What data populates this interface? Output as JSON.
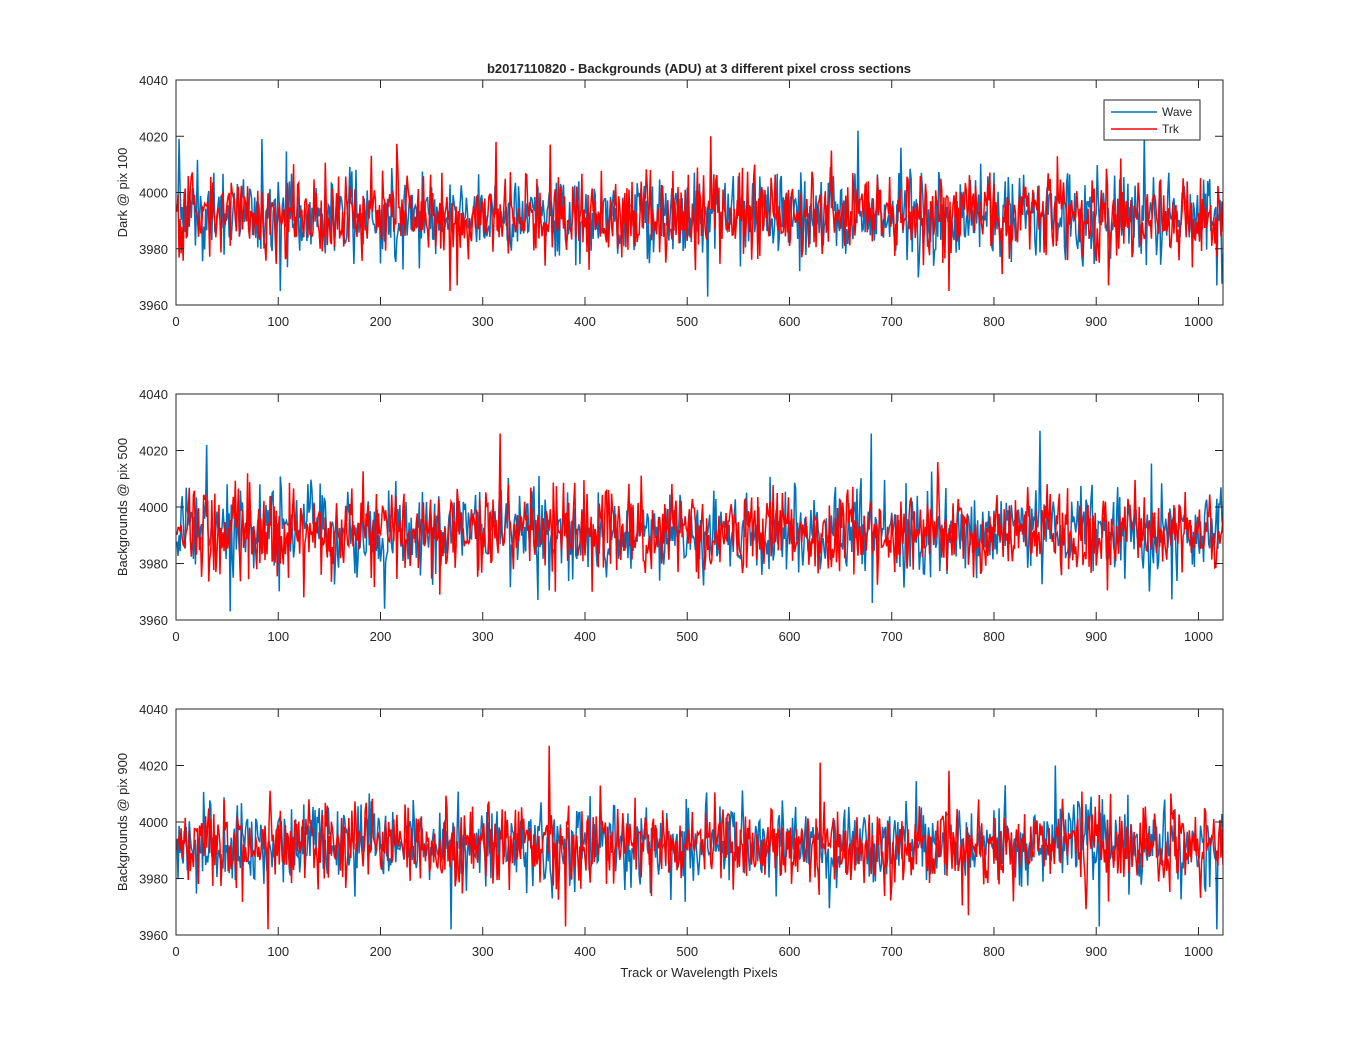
{
  "figure": {
    "title": "b2017110820 - Backgrounds (ADU) at 3 different pixel cross sections",
    "xlabel": "Track or Wavelength Pixels"
  },
  "legend": {
    "entries": [
      {
        "name": "Wave",
        "color": "#0072BD"
      },
      {
        "name": "Trk",
        "color": "#FF0000"
      }
    ],
    "location": "top-right of first panel"
  },
  "chart_data": [
    {
      "type": "line",
      "ylabel": "Dark @ pix 100",
      "xlim": [
        0,
        1024
      ],
      "ylim": [
        3960,
        4040
      ],
      "xticks": [
        0,
        100,
        200,
        300,
        400,
        500,
        600,
        700,
        800,
        900,
        1000
      ],
      "yticks": [
        3960,
        3980,
        4000,
        4020,
        4040
      ],
      "grid": false,
      "series": [
        {
          "name": "Wave",
          "color": "#0072BD",
          "x_range": [
            1,
            1024
          ],
          "mean": 3992,
          "std": 7.5,
          "min": 3963,
          "max": 4022,
          "notable": [
            [
              3,
              4019
            ],
            [
              84,
              4019
            ],
            [
              102,
              3965
            ],
            [
              520,
              3963
            ],
            [
              667,
              4022
            ],
            [
              947,
              4020
            ],
            [
              1018,
              3967
            ]
          ]
        },
        {
          "name": "Trk",
          "color": "#FF0000",
          "x_range": [
            1,
            1024
          ],
          "mean": 3992,
          "std": 7.5,
          "min": 3965,
          "max": 4020,
          "notable": [
            [
              268,
              3965
            ],
            [
              366,
              4017
            ],
            [
              523,
              4020
            ],
            [
              756,
              3965
            ],
            [
              808,
              3971
            ]
          ]
        }
      ]
    },
    {
      "type": "line",
      "ylabel": "Backgrounds @ pix 500",
      "xlim": [
        0,
        1024
      ],
      "ylim": [
        3960,
        4040
      ],
      "xticks": [
        0,
        100,
        200,
        300,
        400,
        500,
        600,
        700,
        800,
        900,
        1000
      ],
      "yticks": [
        3960,
        3980,
        4000,
        4020,
        4040
      ],
      "grid": false,
      "series": [
        {
          "name": "Wave",
          "color": "#0072BD",
          "x_range": [
            1,
            1024
          ],
          "mean": 3991,
          "std": 7.5,
          "min": 3963,
          "max": 4027,
          "notable": [
            [
              30,
              4022
            ],
            [
              53,
              3963
            ],
            [
              204,
              3964
            ],
            [
              845,
              4027
            ],
            [
              680,
              4026
            ],
            [
              681,
              3966
            ]
          ]
        },
        {
          "name": "Trk",
          "color": "#FF0000",
          "x_range": [
            1,
            1024
          ],
          "mean": 3991,
          "std": 7.5,
          "min": 3968,
          "max": 4026,
          "notable": [
            [
              317,
              4026
            ],
            [
              125,
              3968
            ],
            [
              258,
              3969
            ]
          ]
        }
      ]
    },
    {
      "type": "line",
      "ylabel": "Backgrounds @ pix 900",
      "xlim": [
        0,
        1024
      ],
      "ylim": [
        3960,
        4040
      ],
      "xticks": [
        0,
        100,
        200,
        300,
        400,
        500,
        600,
        700,
        800,
        900,
        1000
      ],
      "yticks": [
        3960,
        3980,
        4000,
        4020,
        4040
      ],
      "grid": false,
      "series": [
        {
          "name": "Wave",
          "color": "#0072BD",
          "x_range": [
            1,
            1024
          ],
          "mean": 3992,
          "std": 7.5,
          "min": 3962,
          "max": 4020,
          "notable": [
            [
              269,
              3962
            ],
            [
              860,
              4020
            ],
            [
              903,
              3963
            ],
            [
              1018,
              3962
            ]
          ]
        },
        {
          "name": "Trk",
          "color": "#FF0000",
          "x_range": [
            1,
            1024
          ],
          "mean": 3992,
          "std": 7.5,
          "min": 3962,
          "max": 4027,
          "notable": [
            [
              365,
              4027
            ],
            [
              90,
              3962
            ],
            [
              381,
              3963
            ],
            [
              630,
              4021
            ],
            [
              775,
              3967
            ]
          ]
        }
      ]
    }
  ]
}
